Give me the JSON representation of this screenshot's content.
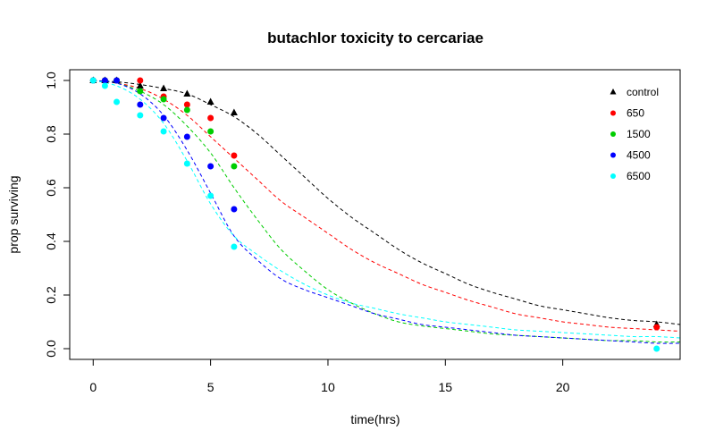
{
  "chart_data": {
    "type": "scatter",
    "title": "butachlor toxicity to cercariae",
    "xlabel": "time(hrs)",
    "ylabel": "prop surviving",
    "xlim": [
      -1,
      25
    ],
    "ylim": [
      -0.04,
      1.04
    ],
    "xticks": [
      0,
      5,
      10,
      15,
      20
    ],
    "yticks": [
      0.0,
      0.2,
      0.4,
      0.6,
      0.8,
      1.0
    ],
    "xtick_labels": [
      "0",
      "5",
      "10",
      "15",
      "20"
    ],
    "ytick_labels": [
      "0.0",
      "0.2",
      "0.4",
      "0.6",
      "0.8",
      "1.0"
    ],
    "grid": false,
    "legend_position": "top-right",
    "series": [
      {
        "name": "control",
        "color": "#000000",
        "marker": "triangle",
        "x": [
          0,
          0.5,
          1,
          2,
          3,
          4,
          5,
          6,
          24
        ],
        "y": [
          1.0,
          1.0,
          1.0,
          0.98,
          0.97,
          0.95,
          0.92,
          0.88,
          0.09
        ],
        "fit_x": [
          0,
          1,
          2,
          3,
          4,
          5,
          6,
          7,
          8,
          9,
          10,
          11,
          12,
          13,
          14,
          15,
          16,
          17,
          18,
          19,
          20,
          21,
          22,
          23,
          24,
          25
        ],
        "fit_y": [
          1.0,
          0.995,
          0.985,
          0.97,
          0.95,
          0.91,
          0.865,
          0.8,
          0.72,
          0.64,
          0.56,
          0.49,
          0.43,
          0.37,
          0.32,
          0.28,
          0.24,
          0.21,
          0.185,
          0.16,
          0.145,
          0.13,
          0.115,
          0.105,
          0.1,
          0.09
        ]
      },
      {
        "name": "650",
        "color": "#ff0000",
        "marker": "circle",
        "x": [
          0,
          0.5,
          1,
          2,
          3,
          4,
          5,
          6,
          24
        ],
        "y": [
          1.0,
          1.0,
          1.0,
          1.0,
          0.94,
          0.91,
          0.86,
          0.72,
          0.08
        ],
        "fit_x": [
          0,
          1,
          2,
          3,
          4,
          5,
          6,
          7,
          8,
          9,
          10,
          11,
          12,
          13,
          14,
          15,
          16,
          17,
          18,
          19,
          20,
          21,
          22,
          23,
          24,
          25
        ],
        "fit_y": [
          1.0,
          0.99,
          0.97,
          0.93,
          0.87,
          0.79,
          0.71,
          0.63,
          0.55,
          0.49,
          0.43,
          0.37,
          0.32,
          0.28,
          0.24,
          0.21,
          0.18,
          0.155,
          0.13,
          0.115,
          0.1,
          0.09,
          0.08,
          0.075,
          0.07,
          0.065
        ]
      },
      {
        "name": "1500",
        "color": "#00cd00",
        "marker": "circle",
        "x": [
          0,
          0.5,
          1,
          2,
          3,
          4,
          5,
          6
        ],
        "y": [
          1.0,
          1.0,
          1.0,
          0.96,
          0.93,
          0.89,
          0.81,
          0.68
        ],
        "fit_x": [
          0,
          1,
          2,
          3,
          4,
          5,
          6,
          7,
          8,
          9,
          10,
          11,
          12,
          13,
          14,
          15,
          16,
          17,
          18,
          19,
          20,
          21,
          22,
          23,
          24,
          25
        ],
        "fit_y": [
          1.0,
          0.99,
          0.96,
          0.91,
          0.83,
          0.73,
          0.6,
          0.48,
          0.37,
          0.29,
          0.22,
          0.17,
          0.13,
          0.1,
          0.085,
          0.075,
          0.065,
          0.055,
          0.05,
          0.045,
          0.04,
          0.035,
          0.03,
          0.03,
          0.025,
          0.025
        ]
      },
      {
        "name": "4500",
        "color": "#0000ff",
        "marker": "circle",
        "x": [
          0,
          0.5,
          1,
          2,
          3,
          4,
          5,
          6
        ],
        "y": [
          1.0,
          1.0,
          1.0,
          0.91,
          0.86,
          0.79,
          0.68,
          0.52
        ],
        "fit_x": [
          0,
          1,
          2,
          3,
          4,
          5,
          6,
          7,
          8,
          9,
          10,
          11,
          12,
          13,
          14,
          15,
          16,
          17,
          18,
          19,
          20,
          21,
          22,
          23,
          24,
          25
        ],
        "fit_y": [
          1.0,
          0.99,
          0.95,
          0.87,
          0.74,
          0.58,
          0.42,
          0.33,
          0.26,
          0.22,
          0.19,
          0.16,
          0.13,
          0.11,
          0.09,
          0.08,
          0.07,
          0.06,
          0.05,
          0.045,
          0.04,
          0.035,
          0.03,
          0.025,
          0.02,
          0.02
        ]
      },
      {
        "name": "6500",
        "color": "#00ffff",
        "marker": "circle",
        "x": [
          0,
          0.5,
          1,
          2,
          3,
          4,
          5,
          6,
          24
        ],
        "y": [
          1.0,
          0.98,
          0.92,
          0.87,
          0.81,
          0.69,
          0.57,
          0.38,
          0.0
        ],
        "fit_x": [
          0,
          1,
          2,
          3,
          4,
          5,
          6,
          7,
          8,
          9,
          10,
          11,
          12,
          13,
          14,
          15,
          16,
          17,
          18,
          19,
          20,
          21,
          22,
          23,
          24,
          25
        ],
        "fit_y": [
          1.0,
          0.98,
          0.93,
          0.84,
          0.7,
          0.54,
          0.42,
          0.35,
          0.29,
          0.24,
          0.2,
          0.17,
          0.15,
          0.13,
          0.115,
          0.1,
          0.09,
          0.08,
          0.07,
          0.065,
          0.06,
          0.055,
          0.05,
          0.045,
          0.045,
          0.04
        ]
      }
    ]
  }
}
